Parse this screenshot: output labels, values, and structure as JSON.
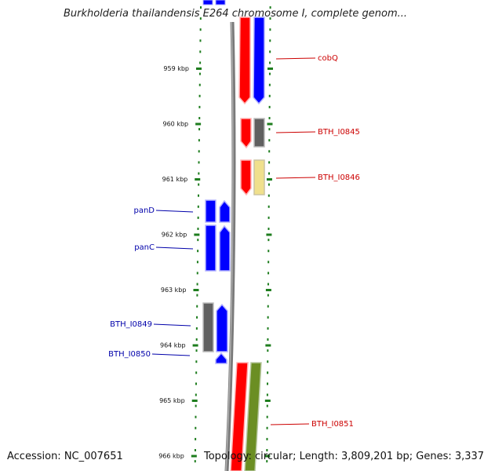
{
  "title": "Burkholderia thailandensis E264 chromosome I, complete genom...",
  "footer": {
    "accession": "Accession: NC_007651",
    "topology": "Topology: circular; Length: 3,809,201 bp; Genes: 3,337"
  },
  "colors": {
    "forward_strand": "#ff0000",
    "reverse_strand": "#0000ff",
    "grey_gene": "#606060",
    "yellow_gene": "#f0e08c",
    "olive_gene": "#6b8e23",
    "ruler_ticks": "#1e7d1e",
    "label_right": "#cc0000",
    "label_left": "#0000aa"
  },
  "ruler": {
    "ticks": [
      {
        "label": "959 kbp"
      },
      {
        "label": "960 kbp"
      },
      {
        "label": "961 kbp"
      },
      {
        "label": "962 kbp"
      },
      {
        "label": "963 kbp"
      },
      {
        "label": "964 kbp"
      },
      {
        "label": "965 kbp"
      },
      {
        "label": "966 kbp"
      }
    ]
  },
  "gene_labels": {
    "right": [
      {
        "name": "cobQ"
      },
      {
        "name": "BTH_I0845"
      },
      {
        "name": "BTH_I0846"
      },
      {
        "name": "BTH_I0851"
      }
    ],
    "left": [
      {
        "name": "panD"
      },
      {
        "name": "panC"
      },
      {
        "name": "BTH_I0849"
      },
      {
        "name": "BTH_I0850"
      }
    ]
  }
}
